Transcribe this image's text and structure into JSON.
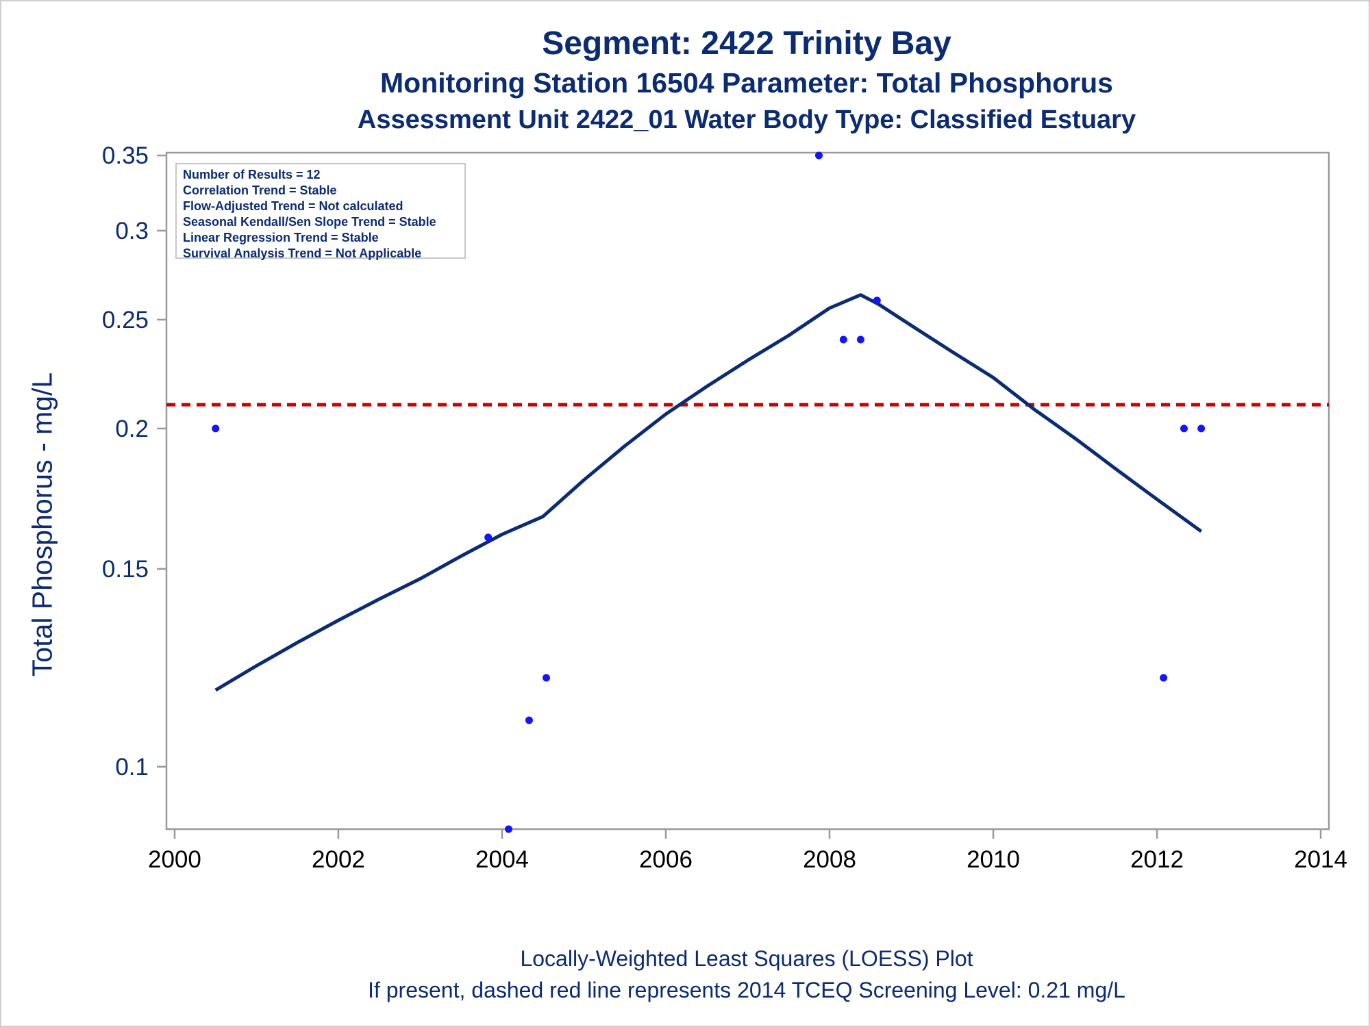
{
  "chart_data": {
    "type": "scatter",
    "title": "Segment: 2422  Trinity Bay",
    "subtitle": "Monitoring Station 16504 Parameter: Total Phosphorus",
    "subtitle2": "Assessment Unit 2422_01   Water Body Type: Classified Estuary",
    "ylabel": "Total Phosphorus - mg/L",
    "xlabel": "",
    "footnotes": [
      "Locally-Weighted Least Squares (LOESS) Plot",
      "If present, dashed red line represents 2014 TCEQ Screening Level: 0.21 mg/L"
    ],
    "y_scale": "log",
    "xlim": [
      1999.9,
      2014.1
    ],
    "ylim": [
      0.088,
      0.352
    ],
    "x_ticks": [
      2000,
      2002,
      2004,
      2006,
      2008,
      2010,
      2012,
      2014
    ],
    "y_ticks": [
      0.1,
      0.15,
      0.2,
      0.25,
      0.3,
      0.35
    ],
    "y_tick_labels": [
      "0.1",
      "0.15",
      "0.2",
      "0.25",
      "0.3",
      "0.35"
    ],
    "grid": false,
    "legend_position": "top-left",
    "legend_lines": [
      "Number of Results = 12",
      "Correlation Trend = Stable",
      "Flow-Adjusted Trend = Not calculated",
      "Seasonal Kendall/Sen Slope Trend = Stable",
      "Linear Regression Trend = Stable",
      "Survival Analysis Trend = Not Applicable"
    ],
    "points": {
      "x": [
        2000.5,
        2003.83,
        2004.08,
        2004.33,
        2004.54,
        2007.87,
        2008.17,
        2008.38,
        2008.58,
        2012.08,
        2012.33,
        2012.54
      ],
      "y": [
        0.2,
        0.16,
        0.088,
        0.11,
        0.12,
        0.35,
        0.24,
        0.24,
        0.26,
        0.12,
        0.2,
        0.2
      ],
      "color": "#1414ff"
    },
    "loess": {
      "x": [
        2000.5,
        2001.0,
        2001.5,
        2002.0,
        2002.5,
        2003.0,
        2003.5,
        2004.0,
        2004.5,
        2005.0,
        2005.5,
        2006.0,
        2006.5,
        2007.0,
        2007.5,
        2008.0,
        2008.38,
        2008.6,
        2009.0,
        2009.5,
        2010.0,
        2010.5,
        2011.0,
        2011.5,
        2012.0,
        2012.54
      ],
      "y": [
        0.117,
        0.123,
        0.129,
        0.135,
        0.141,
        0.147,
        0.154,
        0.161,
        0.167,
        0.18,
        0.193,
        0.206,
        0.218,
        0.23,
        0.242,
        0.256,
        0.263,
        0.258,
        0.247,
        0.234,
        0.222,
        0.208,
        0.196,
        0.184,
        0.173,
        0.162
      ],
      "color": "#0b2b73"
    },
    "screening_level": {
      "y": 0.21,
      "color": "#cc0000"
    }
  }
}
